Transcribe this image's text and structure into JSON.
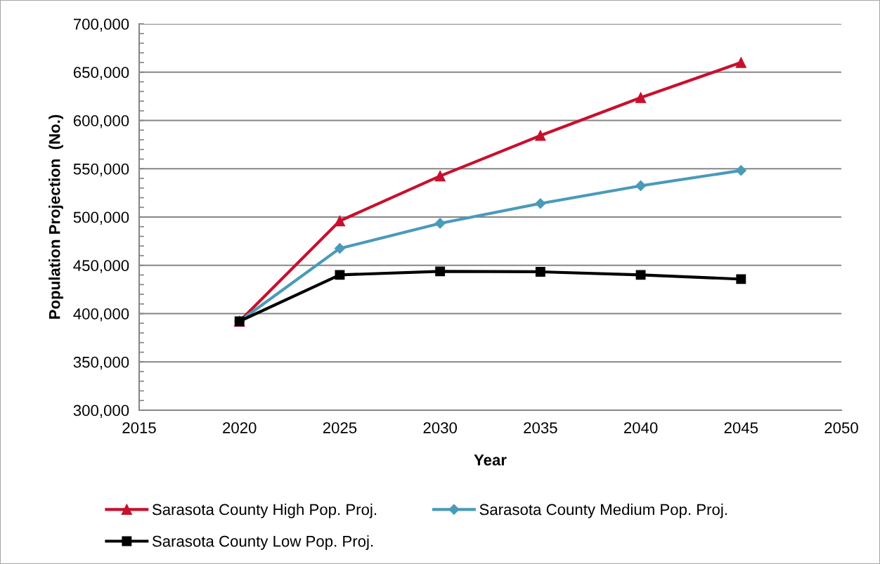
{
  "chart_data": {
    "type": "line",
    "xlabel": "Year",
    "ylabel": "Population Projection  (No.)",
    "x": [
      2020,
      2025,
      2030,
      2035,
      2040,
      2045
    ],
    "series": [
      {
        "name": "Sarasota County High Pop. Proj.",
        "color": "#c8102e",
        "marker": "triangle",
        "values": [
          392000,
          496000,
          542500,
          584400,
          623600,
          660000
        ]
      },
      {
        "name": "Sarasota County Medium Pop. Proj.",
        "color": "#4a9aba",
        "marker": "diamond",
        "values": [
          392000,
          467500,
          493500,
          514000,
          532400,
          548200
        ]
      },
      {
        "name": "Sarasota County Low Pop. Proj.",
        "color": "#000000",
        "marker": "square",
        "values": [
          392000,
          440100,
          443700,
          443300,
          440100,
          435700
        ]
      }
    ],
    "xlim": [
      2015,
      2050
    ],
    "xticks": [
      2015,
      2020,
      2025,
      2030,
      2035,
      2040,
      2045,
      2050
    ],
    "ylim": [
      300000,
      700000
    ],
    "yticks": [
      {
        "value": 300000,
        "label": "300,000"
      },
      {
        "value": 350000,
        "label": "350,000"
      },
      {
        "value": 400000,
        "label": "400,000"
      },
      {
        "value": 450000,
        "label": "450,000"
      },
      {
        "value": 500000,
        "label": "500,000"
      },
      {
        "value": 550000,
        "label": "550,000"
      },
      {
        "value": 600000,
        "label": "600,000"
      },
      {
        "value": 650000,
        "label": "650,000"
      },
      {
        "value": 700000,
        "label": "700,000"
      }
    ],
    "grid": "y",
    "legend": "bottom",
    "line_style": "solid"
  }
}
